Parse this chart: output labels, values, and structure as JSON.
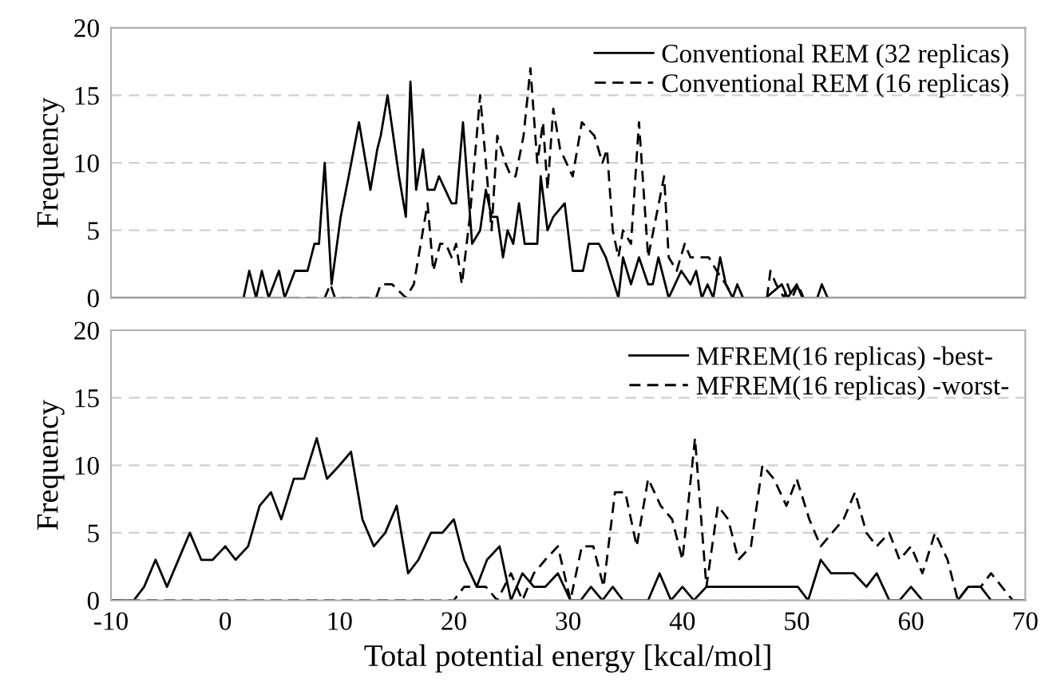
{
  "chart_data": [
    {
      "type": "line",
      "ylabel": "Frequency",
      "xlim": [
        -10,
        70
      ],
      "xticks": [
        -10,
        0,
        10,
        20,
        30,
        40,
        50,
        60,
        70
      ],
      "ylim": [
        0,
        20
      ],
      "yticks": [
        0,
        5,
        10,
        15,
        20
      ],
      "tick_labels": "y",
      "grid": "y",
      "legend": "top right",
      "marker": "none",
      "series": [
        {
          "name": "Conventional REM (32 replicas)",
          "color": "#000000",
          "line_style": "solid",
          "x": [
            -10,
            1.6,
            2.1,
            2.7,
            3.2,
            3.8,
            4.7,
            5.2,
            6.1,
            7.2,
            7.8,
            8.2,
            8.7,
            9.3,
            10.1,
            10.8,
            11.7,
            12.7,
            13.3,
            13.6,
            14.2,
            15.2,
            15.8,
            16.2,
            16.7,
            17.3,
            17.7,
            18.3,
            18.7,
            19.8,
            20.2,
            20.8,
            21.6,
            22.3,
            22.8,
            23.3,
            23.8,
            24.3,
            24.7,
            25.2,
            25.7,
            26.2,
            27.3,
            27.6,
            28.2,
            28.7,
            29.7,
            30.4,
            31.3,
            31.8,
            32.7,
            33.3,
            34.4,
            34.8,
            35.5,
            36.2,
            37,
            37.4,
            37.9,
            38.8,
            39.9,
            40.7,
            41.2,
            41.7,
            42.2,
            42.7,
            43.3,
            43.8,
            44.4,
            44.8,
            45.3,
            47.3,
            48.7,
            49.2,
            50,
            50.5,
            51.8,
            52.2,
            52.7,
            70
          ],
          "values": [
            0,
            0,
            2,
            0,
            2,
            0,
            2,
            0,
            2,
            2,
            4,
            4,
            10,
            1,
            6,
            9,
            13,
            8,
            11,
            12,
            15,
            9,
            6,
            16,
            8,
            11,
            8,
            8,
            9,
            7,
            7,
            13,
            4,
            5,
            8,
            6,
            6,
            3,
            5,
            4,
            7,
            4,
            4,
            9,
            5,
            6,
            7,
            2,
            2,
            4,
            4,
            3,
            0,
            3,
            1,
            3,
            1,
            1,
            3,
            0,
            2,
            1,
            2,
            0,
            1,
            0,
            3,
            1,
            0,
            1,
            0,
            0,
            1,
            0,
            1,
            0,
            0,
            1,
            0,
            0
          ]
        },
        {
          "name": "Conventional REM (16 replicas)",
          "color": "#000000",
          "line_style": "dashed",
          "x": [
            -10,
            8.7,
            9.2,
            9.6,
            13.2,
            13.6,
            14.6,
            15.8,
            16.5,
            17.1,
            17.7,
            18.2,
            18.8,
            19.3,
            19.8,
            20.2,
            20.7,
            21.4,
            22.3,
            23.3,
            23.8,
            24.5,
            25,
            25.4,
            26.1,
            26.7,
            27.3,
            27.8,
            28.2,
            28.7,
            29.3,
            30.4,
            31.2,
            32.3,
            33,
            33.4,
            33.9,
            34.4,
            34.8,
            35.5,
            36.2,
            37,
            37.7,
            38.4,
            38.8,
            39.5,
            40.2,
            40.7,
            41.6,
            42.3,
            43,
            43.8,
            44.5,
            47.4,
            47.7,
            48.2,
            48.9,
            49.2,
            49.6,
            50.1,
            50.6,
            70
          ],
          "values": [
            0,
            0,
            1,
            0,
            0,
            1,
            1,
            0,
            1,
            4,
            7,
            2,
            4,
            4,
            3,
            4,
            1,
            6,
            15,
            5,
            12,
            10,
            9,
            9,
            12,
            17,
            10,
            13,
            8,
            14,
            11,
            9,
            13,
            12,
            10,
            11,
            5,
            3,
            5,
            4,
            13,
            3,
            6,
            9,
            3,
            2,
            4,
            3,
            3,
            3,
            2,
            1,
            0,
            0,
            2,
            1,
            0,
            1,
            0,
            1,
            0,
            0
          ]
        }
      ]
    },
    {
      "type": "line",
      "xlabel": "Total potential energy [kcal/mol]",
      "ylabel": "Frequency",
      "xlim": [
        -10,
        70
      ],
      "xticks": [
        -10,
        0,
        10,
        20,
        30,
        40,
        50,
        60,
        70
      ],
      "ylim": [
        0,
        20
      ],
      "yticks": [
        0,
        5,
        10,
        15,
        20
      ],
      "grid": "y",
      "legend": "top right",
      "marker": "none",
      "series": [
        {
          "name": "MFREM(16 replicas) -best-",
          "color": "#000000",
          "line_style": "solid",
          "x": [
            -10,
            -8,
            -7.1,
            -6.1,
            -5.1,
            -3.1,
            -2.1,
            -1.1,
            0,
            0.9,
            2,
            3,
            4,
            4.9,
            6,
            6.9,
            8,
            8.9,
            10,
            11,
            12,
            13,
            14,
            15,
            16,
            16.9,
            18,
            19,
            20,
            20.9,
            22,
            22.9,
            24,
            25,
            26,
            27,
            28,
            29.1,
            30.2,
            31.1,
            32,
            33,
            33.9,
            34.8,
            37,
            38,
            39,
            40,
            41,
            42.1,
            50.1,
            51,
            52.1,
            53,
            55,
            56.1,
            57,
            58.1,
            59,
            60,
            61,
            64.1,
            65,
            66.1,
            67,
            70
          ],
          "values": [
            0,
            0,
            1,
            3,
            1,
            5,
            3,
            3,
            4,
            3,
            4,
            7,
            8,
            6,
            9,
            9,
            12,
            9,
            10,
            11,
            6,
            4,
            5,
            7,
            2,
            3,
            5,
            5,
            6,
            3,
            1,
            3,
            4,
            0,
            2,
            1,
            1,
            2,
            0,
            0,
            1,
            0,
            1,
            0,
            0,
            2,
            0,
            1,
            0,
            1,
            1,
            0,
            3,
            2,
            2,
            1,
            2,
            0,
            0,
            1,
            0,
            0,
            1,
            1,
            0,
            0
          ]
        },
        {
          "name": "MFREM(16 replicas) -worst-",
          "color": "#000000",
          "line_style": "dashed",
          "x": [
            -10,
            20,
            20.9,
            22.8,
            23.8,
            25,
            26,
            27,
            28,
            29.1,
            30.2,
            31.2,
            32.2,
            33.1,
            34.1,
            35,
            36,
            37,
            38.1,
            39.1,
            40,
            41.1,
            42.1,
            43.1,
            44,
            44.9,
            46,
            47,
            48,
            49.1,
            50,
            51.1,
            52.1,
            53.1,
            54.1,
            55.1,
            56.1,
            57,
            58.1,
            59,
            60,
            61,
            62.1,
            63.2,
            64.1,
            65,
            66.1,
            67,
            68.9,
            70
          ],
          "values": [
            0,
            0,
            1,
            1,
            0,
            2,
            0,
            2,
            3,
            4,
            0,
            4,
            4,
            1,
            8,
            8,
            4,
            9,
            7,
            6,
            3,
            12,
            1,
            7,
            6,
            3,
            4,
            10,
            9,
            7,
            9,
            6,
            4,
            5,
            6,
            8,
            5,
            4,
            5,
            3,
            4,
            2,
            5,
            3,
            0,
            1,
            1,
            2,
            0,
            0
          ]
        }
      ]
    }
  ]
}
